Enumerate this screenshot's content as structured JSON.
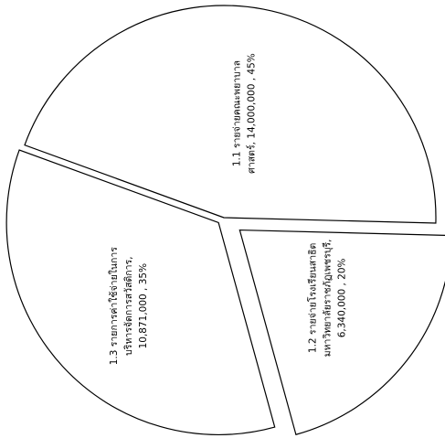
{
  "chart_data": {
    "type": "pie",
    "title": "",
    "values": [
      14000000,
      6340000,
      10871000
    ],
    "percents": [
      45,
      20,
      35
    ],
    "slices": [
      {
        "label_lines": [
          "1.1 รายจ่ายคณะพยาบาล",
          "ศาสตร์,  14,000,000 , 45%"
        ],
        "value": 14000000,
        "percent": 45
      },
      {
        "label_lines": [
          "1.2 รายจ่ายโรงเรียนสาธิต",
          "มหาวิทยาลัยราชภัฏเพชรบุรี,",
          "6,340,000 , 20%"
        ],
        "value": 6340000,
        "percent": 20
      },
      {
        "label_lines": [
          "1.3 รายการค่าใช้จ่ายในการ",
          "บริหารจัดการสวัสดิการ,",
          "10,871,000 , 35%"
        ],
        "value": 10871000,
        "percent": 35
      }
    ],
    "colors": {
      "fill": "#ffffff",
      "stroke": "#000000"
    },
    "legend": "none",
    "grid": false
  }
}
